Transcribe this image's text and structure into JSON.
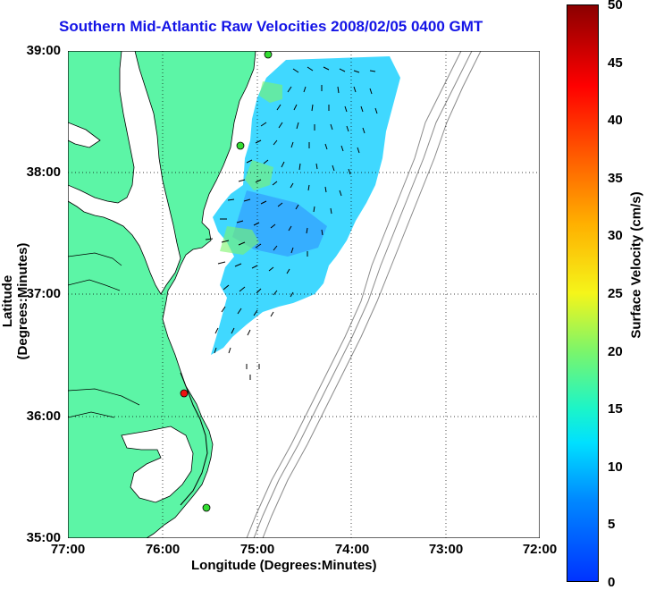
{
  "title": "Southern Mid-Atlantic Raw Velocities 2008/02/05 0400 GMT",
  "y_axis": {
    "label": "Latitude (Degrees:Minutes)",
    "ticks": [
      "39:00",
      "38:00",
      "37:00",
      "36:00",
      "35:00"
    ]
  },
  "x_axis": {
    "label": "Longitude (Degrees:Minutes)",
    "ticks": [
      "77:00",
      "76:00",
      "75:00",
      "74:00",
      "73:00",
      "72:00"
    ]
  },
  "colorbar": {
    "label": "Surface Velocity (cm/s)",
    "ticks": [
      "50",
      "45",
      "40",
      "35",
      "30",
      "25",
      "20",
      "15",
      "10",
      "5",
      "0"
    ]
  },
  "colors": {
    "land": "#5cf5a6",
    "water_velocity_low": "#2e8cff",
    "water_velocity_mid": "#36d6ff",
    "coast_line": "#000000",
    "bathymetry": "#8a8a8a",
    "site_active": "#33dd33",
    "site_alert": "#ee1111",
    "title": "#1414e6"
  }
}
